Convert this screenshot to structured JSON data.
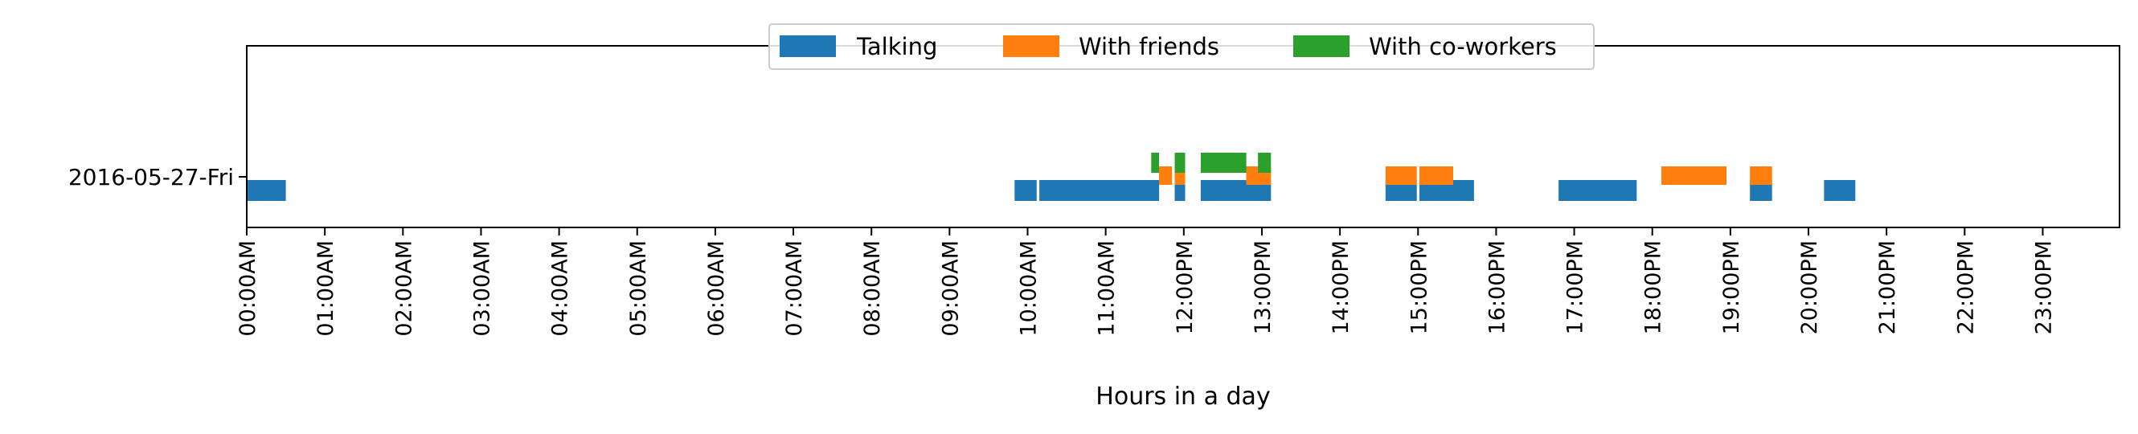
{
  "chart_data": {
    "type": "bar",
    "orientation": "horizontal",
    "title": "",
    "xlabel": "Hours in a day",
    "ylabel": "",
    "xlim": [
      "00:00",
      "23:59"
    ],
    "grid": false,
    "legend_position": "top-center",
    "categories": [
      "2016-05-27-Fri"
    ],
    "x_tick_labels": [
      "00:00AM",
      "01:00AM",
      "02:00AM",
      "03:00AM",
      "04:00AM",
      "05:00AM",
      "06:00AM",
      "07:00AM",
      "08:00AM",
      "09:00AM",
      "10:00AM",
      "11:00AM",
      "12:00PM",
      "13:00PM",
      "14:00PM",
      "15:00PM",
      "16:00PM",
      "17:00PM",
      "18:00PM",
      "19:00PM",
      "20:00PM",
      "21:00PM",
      "22:00PM",
      "23:00PM"
    ],
    "series": [
      {
        "name": "Talking",
        "color": "#1f77b4",
        "intervals": [
          [
            "00:00",
            "00:30"
          ],
          [
            "09:50",
            "10:07"
          ],
          [
            "10:09",
            "11:41"
          ],
          [
            "11:53",
            "12:01"
          ],
          [
            "12:13",
            "13:07"
          ],
          [
            "14:35",
            "14:59"
          ],
          [
            "15:01",
            "15:43"
          ],
          [
            "16:48",
            "17:48"
          ],
          [
            "19:15",
            "19:32"
          ],
          [
            "20:12",
            "20:36"
          ]
        ]
      },
      {
        "name": "With friends",
        "color": "#ff7f0e",
        "intervals": [
          [
            "11:41",
            "11:51"
          ],
          [
            "11:53",
            "12:01"
          ],
          [
            "12:48",
            "13:07"
          ],
          [
            "14:35",
            "14:59"
          ],
          [
            "15:01",
            "15:27"
          ],
          [
            "18:07",
            "18:57"
          ],
          [
            "19:15",
            "19:32"
          ]
        ]
      },
      {
        "name": "With co-workers",
        "color": "#2ca02c",
        "intervals": [
          [
            "11:35",
            "11:41"
          ],
          [
            "11:53",
            "12:01"
          ],
          [
            "12:13",
            "12:48"
          ],
          [
            "12:57",
            "13:07"
          ]
        ]
      }
    ]
  }
}
